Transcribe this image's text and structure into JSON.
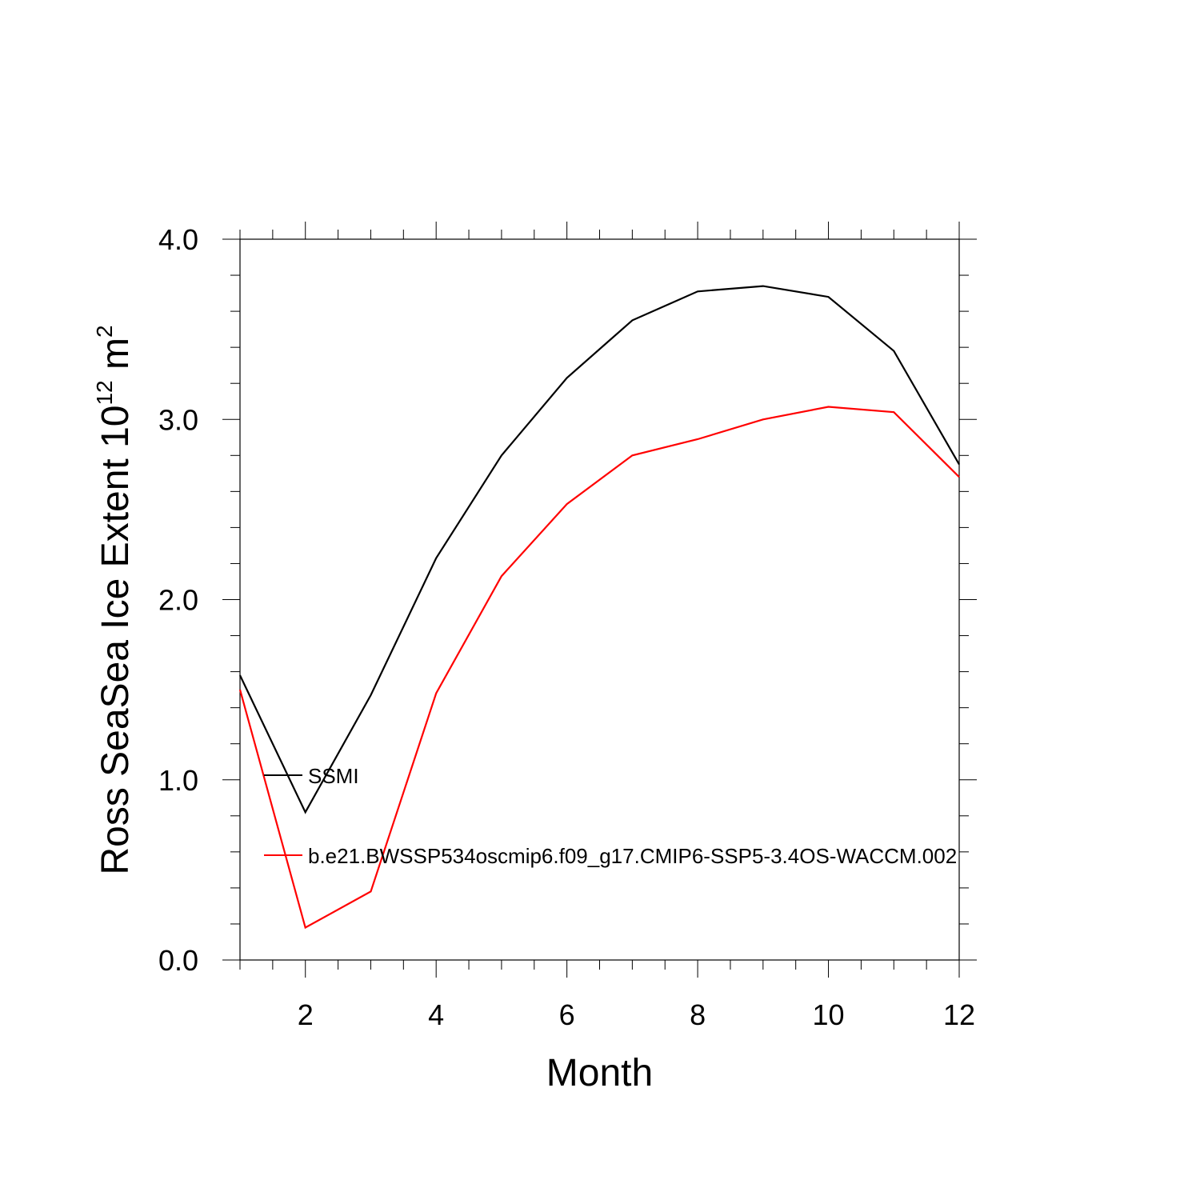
{
  "chart_data": {
    "type": "line",
    "xlabel": "Month",
    "ylabel": {
      "text": "Ross SeaSea Ice Extent 10",
      "exp": "12",
      "unit": " m",
      "sup": "2"
    },
    "xlim": [
      1,
      12
    ],
    "ylim": [
      0,
      4
    ],
    "x_ticks": [
      2,
      4,
      6,
      8,
      10,
      12
    ],
    "y_ticks": [
      0.0,
      1.0,
      2.0,
      3.0,
      4.0
    ],
    "y_tick_labels": [
      "0.0",
      "1.0",
      "2.0",
      "3.0",
      "4.0"
    ],
    "x": [
      1,
      2,
      3,
      4,
      5,
      6,
      7,
      8,
      9,
      10,
      11,
      12
    ],
    "series": [
      {
        "name": "SSMI",
        "color": "#000000",
        "values": [
          1.58,
          0.82,
          1.47,
          2.23,
          2.8,
          3.23,
          3.55,
          3.71,
          3.74,
          3.68,
          3.38,
          2.75
        ]
      },
      {
        "name": "b.e21.BWSSP534oscmip6.f09_g17.CMIP6-SSP5-3.4OS-WACCM.002",
        "color": "#ff0000",
        "values": [
          1.5,
          0.18,
          0.38,
          1.48,
          2.13,
          2.53,
          2.8,
          2.89,
          3.0,
          3.07,
          3.04,
          2.68
        ]
      }
    ],
    "legend": {
      "placement": "lower-left inside"
    }
  }
}
